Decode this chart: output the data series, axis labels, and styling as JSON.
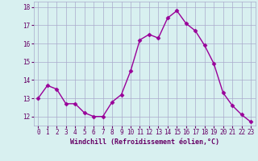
{
  "x": [
    0,
    1,
    2,
    3,
    4,
    5,
    6,
    7,
    8,
    9,
    10,
    11,
    12,
    13,
    14,
    15,
    16,
    17,
    18,
    19,
    20,
    21,
    22,
    23
  ],
  "y": [
    13.0,
    13.7,
    13.5,
    12.7,
    12.7,
    12.2,
    12.0,
    12.0,
    12.8,
    13.2,
    14.5,
    16.2,
    16.5,
    16.3,
    17.4,
    17.8,
    17.1,
    16.7,
    15.9,
    14.9,
    13.3,
    12.6,
    12.1,
    11.7
  ],
  "line_color": "#990099",
  "marker": "D",
  "marker_size": 2.5,
  "bg_color": "#d8f0f0",
  "grid_color": "#aaaacc",
  "ylabel_ticks": [
    12,
    13,
    14,
    15,
    16,
    17,
    18
  ],
  "xlabel": "Windchill (Refroidissement éolien,°C)",
  "xlim": [
    -0.5,
    23.5
  ],
  "ylim": [
    11.5,
    18.3
  ],
  "xlabel_color": "#660066",
  "tick_color": "#660066",
  "line_width": 1.0,
  "tick_fontsize": 5.5,
  "xlabel_fontsize": 6.0
}
